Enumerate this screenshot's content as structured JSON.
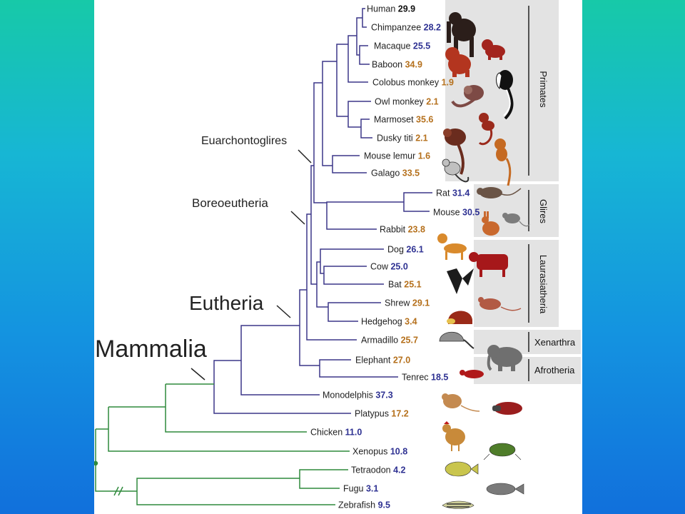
{
  "colors": {
    "background_top": "#17c9a8",
    "background_bottom": "#1170dc",
    "mammal_branch": "#3b3789",
    "outgroup_branch": "#2f8a3c",
    "value_blue": "#2e3192",
    "value_orange": "#b5701c",
    "value_black": "#111111",
    "group_shade": "#e3e3e3"
  },
  "clades": {
    "mammalia": "Mammalia",
    "eutheria": "Eutheria",
    "boreoeutheria": "Boreoeutheria",
    "euarchontoglires": "Euarchontoglires"
  },
  "groups": {
    "primates": "Primates",
    "glires": "Glires",
    "laurasiatheria": "Laurasiatheria",
    "xenarthra": "Xenarthra",
    "afrotheria": "Afrotheria"
  },
  "taxa": [
    {
      "name": "Human",
      "value": "29.9",
      "color": "black"
    },
    {
      "name": "Chimpanzee",
      "value": "28.2",
      "color": "blue"
    },
    {
      "name": "Macaque",
      "value": "25.5",
      "color": "blue"
    },
    {
      "name": "Baboon",
      "value": "34.9",
      "color": "orange"
    },
    {
      "name": "Colobus monkey",
      "value": "1.9",
      "color": "orange"
    },
    {
      "name": "Owl monkey",
      "value": "2.1",
      "color": "orange"
    },
    {
      "name": "Marmoset",
      "value": "35.6",
      "color": "orange"
    },
    {
      "name": "Dusky titi",
      "value": "2.1",
      "color": "orange"
    },
    {
      "name": "Mouse lemur",
      "value": "1.6",
      "color": "orange"
    },
    {
      "name": "Galago",
      "value": "33.5",
      "color": "orange"
    },
    {
      "name": "Rat",
      "value": "31.4",
      "color": "blue"
    },
    {
      "name": "Mouse",
      "value": "30.5",
      "color": "blue"
    },
    {
      "name": "Rabbit",
      "value": "23.8",
      "color": "orange"
    },
    {
      "name": "Dog",
      "value": "26.1",
      "color": "blue"
    },
    {
      "name": "Cow",
      "value": "25.0",
      "color": "blue"
    },
    {
      "name": "Bat",
      "value": "25.1",
      "color": "orange"
    },
    {
      "name": "Shrew",
      "value": "29.1",
      "color": "orange"
    },
    {
      "name": "Hedgehog",
      "value": "3.4",
      "color": "orange"
    },
    {
      "name": "Armadillo",
      "value": "25.7",
      "color": "orange"
    },
    {
      "name": "Elephant",
      "value": "27.0",
      "color": "orange"
    },
    {
      "name": "Tenrec",
      "value": "18.5",
      "color": "blue"
    },
    {
      "name": "Monodelphis",
      "value": "37.3",
      "color": "blue"
    },
    {
      "name": "Platypus",
      "value": "17.2",
      "color": "orange"
    },
    {
      "name": "Chicken",
      "value": "11.0",
      "color": "blue"
    },
    {
      "name": "Xenopus",
      "value": "10.8",
      "color": "blue"
    },
    {
      "name": "Tetraodon",
      "value": "4.2",
      "color": "blue"
    },
    {
      "name": "Fugu",
      "value": "3.1",
      "color": "blue"
    },
    {
      "name": "Zebrafish",
      "value": "9.5",
      "color": "blue"
    }
  ],
  "illustrations": [
    "chimpanzee-icon",
    "macaque-icon",
    "baboon-icon",
    "colobus-icon",
    "owl-monkey-icon",
    "marmoset-icon",
    "titi-icon",
    "lemur-icon",
    "galago-icon",
    "rat-icon",
    "mouse-icon",
    "rabbit-icon",
    "dog-icon",
    "cow-icon",
    "bat-icon",
    "shrew-icon",
    "hedgehog-icon",
    "armadillo-icon",
    "elephant-icon",
    "tenrec-icon",
    "opossum-icon",
    "platypus-icon",
    "chicken-icon",
    "frog-icon",
    "pufferfish-icon",
    "fugu-icon",
    "zebrafish-icon"
  ]
}
